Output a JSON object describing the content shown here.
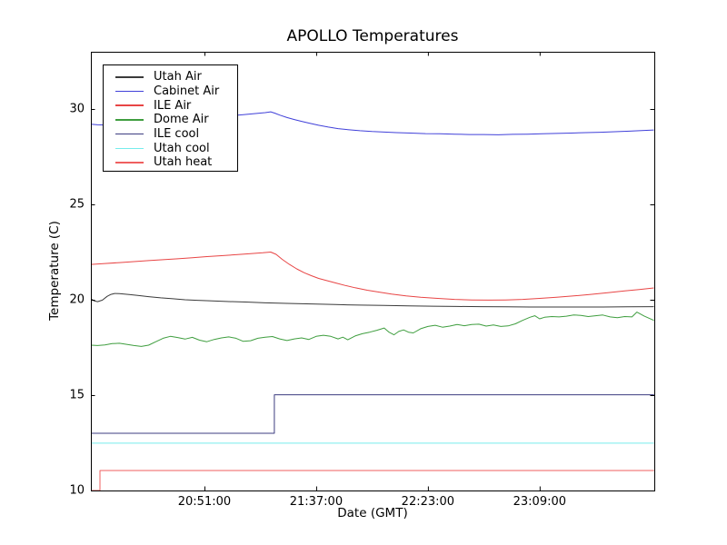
{
  "chart_data": {
    "type": "line",
    "title": "APOLLO Temperatures",
    "xlabel": "Date (GMT)",
    "ylabel": "Temperature (C)",
    "grid": false,
    "legend_position": "upper left",
    "x_unit": "minutes after 20:00 GMT",
    "xlim": [
      4.25,
      236.2
    ],
    "ylim": [
      10,
      33
    ],
    "x_ticks": [
      {
        "t": 51,
        "label": "20:51:00"
      },
      {
        "t": 97,
        "label": "21:37:00"
      },
      {
        "t": 143,
        "label": "22:23:00"
      },
      {
        "t": 189,
        "label": "23:09:00"
      }
    ],
    "y_ticks": [
      {
        "v": 10,
        "label": "10"
      },
      {
        "v": 15,
        "label": "15"
      },
      {
        "v": 20,
        "label": "20"
      },
      {
        "v": 25,
        "label": "25"
      },
      {
        "v": 30,
        "label": "30"
      }
    ],
    "series": [
      {
        "name": "Utah Air",
        "color": "#3a3a3a",
        "points": [
          [
            4.3,
            20.05
          ],
          [
            5.5,
            19.95
          ],
          [
            7,
            19.9
          ],
          [
            9,
            19.98
          ],
          [
            11,
            20.18
          ],
          [
            12.5,
            20.28
          ],
          [
            14,
            20.33
          ],
          [
            16,
            20.32
          ],
          [
            20,
            20.27
          ],
          [
            24,
            20.22
          ],
          [
            28,
            20.16
          ],
          [
            33,
            20.1
          ],
          [
            38,
            20.05
          ],
          [
            43,
            20.0
          ],
          [
            48,
            19.97
          ],
          [
            53,
            19.95
          ],
          [
            60,
            19.91
          ],
          [
            68,
            19.88
          ],
          [
            76,
            19.84
          ],
          [
            85,
            19.81
          ],
          [
            95,
            19.78
          ],
          [
            105,
            19.75
          ],
          [
            115,
            19.72
          ],
          [
            125,
            19.7
          ],
          [
            135,
            19.68
          ],
          [
            145,
            19.66
          ],
          [
            155,
            19.65
          ],
          [
            165,
            19.64
          ],
          [
            175,
            19.63
          ],
          [
            185,
            19.62
          ],
          [
            195,
            19.62
          ],
          [
            205,
            19.62
          ],
          [
            215,
            19.62
          ],
          [
            225,
            19.63
          ],
          [
            236,
            19.64
          ]
        ]
      },
      {
        "name": "Cabinet Air",
        "color": "#4040d9",
        "points": [
          [
            4.3,
            29.2
          ],
          [
            7,
            29.17
          ],
          [
            10,
            29.16
          ],
          [
            14,
            29.2
          ],
          [
            20,
            29.25
          ],
          [
            26,
            29.3
          ],
          [
            32,
            29.36
          ],
          [
            38,
            29.42
          ],
          [
            44,
            29.48
          ],
          [
            50,
            29.54
          ],
          [
            56,
            29.6
          ],
          [
            62,
            29.65
          ],
          [
            67,
            29.7
          ],
          [
            72,
            29.76
          ],
          [
            76,
            29.81
          ],
          [
            78.3,
            29.85
          ],
          [
            80,
            29.78
          ],
          [
            82,
            29.68
          ],
          [
            85,
            29.55
          ],
          [
            88,
            29.45
          ],
          [
            91,
            29.35
          ],
          [
            94,
            29.26
          ],
          [
            98,
            29.15
          ],
          [
            102,
            29.05
          ],
          [
            106,
            28.97
          ],
          [
            110,
            28.92
          ],
          [
            115,
            28.86
          ],
          [
            120,
            28.82
          ],
          [
            125,
            28.79
          ],
          [
            130,
            28.76
          ],
          [
            136,
            28.74
          ],
          [
            142,
            28.71
          ],
          [
            148,
            28.7
          ],
          [
            154,
            28.68
          ],
          [
            160,
            28.66
          ],
          [
            166,
            28.66
          ],
          [
            172,
            28.65
          ],
          [
            178,
            28.67
          ],
          [
            184,
            28.68
          ],
          [
            190,
            28.7
          ],
          [
            196,
            28.72
          ],
          [
            202,
            28.74
          ],
          [
            208,
            28.76
          ],
          [
            214,
            28.78
          ],
          [
            220,
            28.81
          ],
          [
            226,
            28.84
          ],
          [
            231,
            28.87
          ],
          [
            236,
            28.9
          ]
        ]
      },
      {
        "name": "ILE Air",
        "color": "#e84545",
        "points": [
          [
            4.3,
            21.85
          ],
          [
            10,
            21.9
          ],
          [
            16,
            21.95
          ],
          [
            22,
            22.0
          ],
          [
            28,
            22.05
          ],
          [
            34,
            22.1
          ],
          [
            40,
            22.15
          ],
          [
            46,
            22.2
          ],
          [
            52,
            22.26
          ],
          [
            58,
            22.31
          ],
          [
            64,
            22.36
          ],
          [
            70,
            22.42
          ],
          [
            75,
            22.46
          ],
          [
            78.3,
            22.5
          ],
          [
            80.5,
            22.38
          ],
          [
            83,
            22.12
          ],
          [
            86,
            21.85
          ],
          [
            89,
            21.62
          ],
          [
            92,
            21.42
          ],
          [
            95,
            21.26
          ],
          [
            98,
            21.12
          ],
          [
            101.5,
            21.0
          ],
          [
            105,
            20.88
          ],
          [
            109,
            20.75
          ],
          [
            113,
            20.63
          ],
          [
            118,
            20.5
          ],
          [
            123,
            20.4
          ],
          [
            128,
            20.3
          ],
          [
            134,
            20.2
          ],
          [
            140,
            20.13
          ],
          [
            147,
            20.07
          ],
          [
            154,
            20.02
          ],
          [
            161,
            19.99
          ],
          [
            168,
            19.98
          ],
          [
            175,
            19.99
          ],
          [
            182,
            20.02
          ],
          [
            189,
            20.07
          ],
          [
            196,
            20.13
          ],
          [
            203,
            20.2
          ],
          [
            210,
            20.28
          ],
          [
            217,
            20.37
          ],
          [
            224,
            20.46
          ],
          [
            230,
            20.54
          ],
          [
            236,
            20.62
          ]
        ]
      },
      {
        "name": "Dome Air",
        "color": "#3f9e3f",
        "points": [
          [
            4.3,
            17.62
          ],
          [
            7,
            17.6
          ],
          [
            10,
            17.63
          ],
          [
            13,
            17.7
          ],
          [
            16,
            17.72
          ],
          [
            19,
            17.66
          ],
          [
            22,
            17.6
          ],
          [
            25,
            17.55
          ],
          [
            28,
            17.62
          ],
          [
            31,
            17.8
          ],
          [
            34,
            17.98
          ],
          [
            37,
            18.08
          ],
          [
            40,
            18.02
          ],
          [
            43,
            17.94
          ],
          [
            46,
            18.03
          ],
          [
            49,
            17.88
          ],
          [
            52,
            17.8
          ],
          [
            55,
            17.92
          ],
          [
            58,
            18.0
          ],
          [
            61,
            18.05
          ],
          [
            64,
            17.98
          ],
          [
            67,
            17.82
          ],
          [
            70,
            17.85
          ],
          [
            73,
            17.98
          ],
          [
            76,
            18.04
          ],
          [
            79,
            18.07
          ],
          [
            82,
            17.95
          ],
          [
            85,
            17.86
          ],
          [
            88,
            17.95
          ],
          [
            91,
            18.0
          ],
          [
            94,
            17.92
          ],
          [
            97,
            18.08
          ],
          [
            100,
            18.14
          ],
          [
            103,
            18.08
          ],
          [
            106,
            17.95
          ],
          [
            108,
            18.04
          ],
          [
            110,
            17.9
          ],
          [
            113,
            18.1
          ],
          [
            116,
            18.22
          ],
          [
            119,
            18.3
          ],
          [
            122,
            18.4
          ],
          [
            125,
            18.52
          ],
          [
            127,
            18.3
          ],
          [
            129,
            18.16
          ],
          [
            131,
            18.34
          ],
          [
            133,
            18.42
          ],
          [
            135,
            18.3
          ],
          [
            137,
            18.26
          ],
          [
            140,
            18.48
          ],
          [
            143,
            18.6
          ],
          [
            146,
            18.66
          ],
          [
            149,
            18.56
          ],
          [
            152,
            18.62
          ],
          [
            155,
            18.7
          ],
          [
            158,
            18.64
          ],
          [
            161,
            18.7
          ],
          [
            164,
            18.72
          ],
          [
            167,
            18.62
          ],
          [
            170,
            18.68
          ],
          [
            173,
            18.6
          ],
          [
            176,
            18.63
          ],
          [
            179,
            18.74
          ],
          [
            182,
            18.92
          ],
          [
            185,
            19.08
          ],
          [
            187,
            19.16
          ],
          [
            189,
            19.0
          ],
          [
            191,
            19.08
          ],
          [
            194,
            19.12
          ],
          [
            197,
            19.1
          ],
          [
            200,
            19.14
          ],
          [
            203,
            19.2
          ],
          [
            206,
            19.18
          ],
          [
            209,
            19.12
          ],
          [
            212,
            19.16
          ],
          [
            215,
            19.2
          ],
          [
            218,
            19.1
          ],
          [
            221,
            19.06
          ],
          [
            224,
            19.12
          ],
          [
            227,
            19.1
          ],
          [
            229,
            19.35
          ],
          [
            232,
            19.15
          ],
          [
            236,
            18.92
          ]
        ]
      },
      {
        "name": "ILE cool",
        "color": "#3d3d80",
        "points": [
          [
            4.3,
            13.0
          ],
          [
            79.8,
            13.0
          ],
          [
            79.8,
            15.02
          ],
          [
            236.1,
            15.02
          ]
        ]
      },
      {
        "name": "Utah cool",
        "color": "#76ecec",
        "points": [
          [
            4.3,
            12.48
          ],
          [
            236.1,
            12.48
          ]
        ]
      },
      {
        "name": "Utah heat",
        "color": "#ef5f5f",
        "points": [
          [
            4.3,
            10.0
          ],
          [
            8,
            10.0
          ],
          [
            8,
            11.05
          ],
          [
            236.1,
            11.05
          ]
        ]
      }
    ]
  }
}
